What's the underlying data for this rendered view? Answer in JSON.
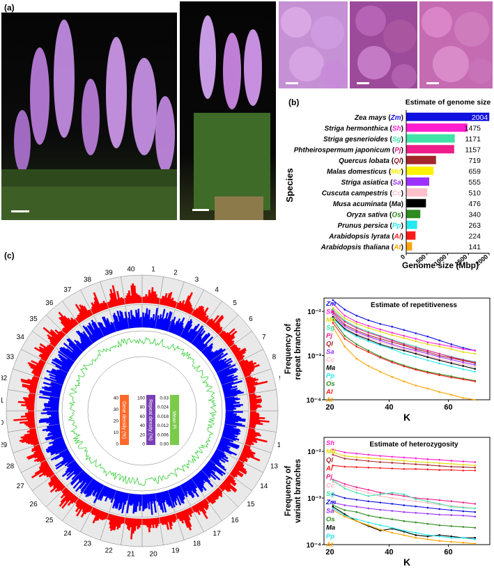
{
  "panels": {
    "a": "(a)",
    "b": "(b)",
    "c": "(c)"
  },
  "genome_size_chart": {
    "type": "bar",
    "title": "Estimate of genome size",
    "xlabel": "Genome size (Mbp)",
    "ylabel": "Species",
    "xlim": [
      0,
      2000
    ],
    "xticks": [
      0,
      500,
      1000,
      1500,
      2000
    ],
    "categories": [
      {
        "name": "Zea mays",
        "abbr": "Zm",
        "value": 2004,
        "color": "#1010e0"
      },
      {
        "name": "Striga hermonthica",
        "abbr": "Sh",
        "value": 1475,
        "color": "#ff1ecf"
      },
      {
        "name": "Striga gesnerioides",
        "abbr": "Sg",
        "value": 1171,
        "color": "#3fe3a8"
      },
      {
        "name": "Phtheirospermum japonicum",
        "abbr": "Pj",
        "value": 1157,
        "color": "#ee1d8a"
      },
      {
        "name": "Quercus lobata",
        "abbr": "Ql",
        "value": 719,
        "color": "#a3262a"
      },
      {
        "name": "Malas domesticus",
        "abbr": "Md",
        "value": 659,
        "color": "#fff200"
      },
      {
        "name": "Striga asiatica",
        "abbr": "Sa",
        "value": 555,
        "color": "#9b30ff"
      },
      {
        "name": "Cuscuta campestris",
        "abbr": "Cc",
        "value": 510,
        "color": "#ffc0cb"
      },
      {
        "name": "Musa acuminata",
        "abbr": "Ma",
        "value": 476,
        "color": "#000000"
      },
      {
        "name": "Oryza sativa",
        "abbr": "Os",
        "value": 340,
        "color": "#2e8b1e"
      },
      {
        "name": "Prunus persica",
        "abbr": "Pp",
        "value": 263,
        "color": "#25e8ef"
      },
      {
        "name": "Arabidopsis lyrata",
        "abbr": "Al",
        "value": 224,
        "color": "#ff1a1a"
      },
      {
        "name": "Arabidopsis thaliana",
        "abbr": "At",
        "value": 141,
        "color": "#ffa500"
      }
    ]
  },
  "repetitiveness_chart": {
    "type": "line",
    "title": "Estimate of repetitiveness",
    "xlabel": "K",
    "ylabel_lines": [
      "Frequency of",
      "repeat branches"
    ],
    "log_y": true,
    "ylim": [
      0.0001,
      0.02
    ],
    "xlim": [
      18,
      74
    ],
    "xticks": [
      20,
      40,
      60
    ],
    "yticks": [
      {
        "v": 0.01,
        "label": "10⁻²"
      },
      {
        "v": 0.001,
        "label": "10⁻³"
      },
      {
        "v": 0.0001,
        "label": "10⁻⁴"
      }
    ],
    "legend": [
      {
        "abbr": "Zm",
        "color": "#1010e0"
      },
      {
        "abbr": "Sh",
        "color": "#ff1ecf"
      },
      {
        "abbr": "Md",
        "color": "#e6d800"
      },
      {
        "abbr": "Sg",
        "color": "#3fe3a8"
      },
      {
        "abbr": "Pj",
        "color": "#ee1d8a"
      },
      {
        "abbr": "Ql",
        "color": "#a3262a"
      },
      {
        "abbr": "Sa",
        "color": "#9b30ff"
      },
      {
        "abbr": "Cc",
        "color": "#ffb6c1"
      },
      {
        "abbr": "Ma",
        "color": "#000000"
      },
      {
        "abbr": "Pp",
        "color": "#25e8ef"
      },
      {
        "abbr": "Os",
        "color": "#2e8b1e"
      },
      {
        "abbr": "Al",
        "color": "#ff1a1a"
      },
      {
        "abbr": "At",
        "color": "#ffa500"
      }
    ],
    "x": [
      21,
      25,
      29,
      33,
      37,
      41,
      45,
      49,
      53,
      57,
      61,
      65,
      69
    ],
    "series": [
      {
        "name": "Zm",
        "color": "#1010e0",
        "values": [
          0.018,
          0.011,
          0.008,
          0.0063,
          0.0052,
          0.0045,
          0.0038,
          0.0032,
          0.0027,
          0.0022,
          0.0018,
          0.0015,
          0.0013
        ]
      },
      {
        "name": "Sh",
        "color": "#ff1ecf",
        "values": [
          0.015,
          0.008,
          0.0058,
          0.0047,
          0.0039,
          0.0033,
          0.0028,
          0.0024,
          0.002,
          0.0018,
          0.0016,
          0.0014,
          0.0013
        ]
      },
      {
        "name": "Md",
        "color": "#e6d800",
        "values": [
          0.012,
          0.007,
          0.0052,
          0.0042,
          0.0035,
          0.0029,
          0.0025,
          0.0021,
          0.0018,
          0.0016,
          0.0014,
          0.0012,
          0.0011
        ]
      },
      {
        "name": "Sg",
        "color": "#3fe3a8",
        "values": [
          0.011,
          0.0062,
          0.0044,
          0.0035,
          0.0028,
          0.0023,
          0.0019,
          0.0016,
          0.0013,
          0.0011,
          0.00095,
          0.00082,
          0.00072
        ]
      },
      {
        "name": "Pj",
        "color": "#ee1d8a",
        "values": [
          0.01,
          0.0058,
          0.0042,
          0.0033,
          0.0027,
          0.0022,
          0.0018,
          0.0015,
          0.0013,
          0.0011,
          0.00092,
          0.0008,
          0.0007
        ]
      },
      {
        "name": "Ql",
        "color": "#a3262a",
        "values": [
          0.0095,
          0.005,
          0.0037,
          0.0029,
          0.0024,
          0.002,
          0.0017,
          0.0014,
          0.0012,
          0.001,
          0.00088,
          0.00077,
          0.00068
        ]
      },
      {
        "name": "Sa",
        "color": "#9b30ff",
        "values": [
          0.0085,
          0.0046,
          0.0034,
          0.0027,
          0.0022,
          0.0018,
          0.0015,
          0.0013,
          0.0011,
          0.00093,
          0.00081,
          0.0007,
          0.00062
        ]
      },
      {
        "name": "Cc",
        "color": "#ffb6c1",
        "values": [
          0.008,
          0.0043,
          0.0031,
          0.0025,
          0.002,
          0.0017,
          0.0014,
          0.0012,
          0.00098,
          0.00084,
          0.00072,
          0.00063,
          0.00056
        ]
      },
      {
        "name": "Ma",
        "color": "#000000",
        "values": [
          0.0075,
          0.004,
          0.0029,
          0.0023,
          0.0018,
          0.0015,
          0.0013,
          0.0011,
          0.00092,
          0.00078,
          0.00067,
          0.00058,
          0.0005
        ]
      },
      {
        "name": "Pp",
        "color": "#25e8ef",
        "values": [
          0.007,
          0.0038,
          0.0027,
          0.0021,
          0.0017,
          0.0014,
          0.0011,
          0.00093,
          0.00078,
          0.00066,
          0.00057,
          0.00049,
          0.00043
        ]
      },
      {
        "name": "Os",
        "color": "#2e8b1e",
        "values": [
          0.0065,
          0.0028,
          0.0018,
          0.0013,
          0.00095,
          0.00074,
          0.0006,
          0.0005,
          0.00043,
          0.00038,
          0.00034,
          0.0003,
          0.00027
        ]
      },
      {
        "name": "Al",
        "color": "#ff1a1a",
        "values": [
          0.0055,
          0.0024,
          0.0016,
          0.0012,
          0.0009,
          0.0007,
          0.00057,
          0.00048,
          0.00041,
          0.00036,
          0.00032,
          0.00029,
          0.00026
        ]
      },
      {
        "name": "At",
        "color": "#ffa500",
        "values": [
          0.0045,
          0.0016,
          0.00085,
          0.00058,
          0.00043,
          0.00033,
          0.00026,
          0.00021,
          0.00018,
          0.00015,
          0.00013,
          0.00011,
          0.0001
        ]
      }
    ]
  },
  "heterozygosity_chart": {
    "type": "line",
    "title": "Estimate of heterozygosity",
    "xlabel": "K",
    "ylabel_lines": [
      "Frequency of",
      "variant branches"
    ],
    "log_y": true,
    "ylim": [
      0.0001,
      0.02
    ],
    "xlim": [
      18,
      74
    ],
    "xticks": [
      20,
      40,
      60
    ],
    "yticks": [
      {
        "v": 0.01,
        "label": "10⁻²"
      },
      {
        "v": 0.001,
        "label": "10⁻³"
      },
      {
        "v": 0.0001,
        "label": "10⁻⁴"
      }
    ],
    "legend": [
      {
        "abbr": "Sh",
        "color": "#ff1ecf"
      },
      {
        "abbr": "Md",
        "color": "#e6d800"
      },
      {
        "abbr": "Ql",
        "color": "#a3262a"
      },
      {
        "abbr": "Al",
        "color": "#ff1a1a"
      },
      {
        "abbr": "Pj",
        "color": "#ee1d8a"
      },
      {
        "abbr": "Cc",
        "color": "#ffb6c1"
      },
      {
        "abbr": "Sg",
        "color": "#3fe3a8"
      },
      {
        "abbr": "Zm",
        "color": "#1010e0"
      },
      {
        "abbr": "Sa",
        "color": "#9b30ff"
      },
      {
        "abbr": "Os",
        "color": "#2e8b1e"
      },
      {
        "abbr": "Ma",
        "color": "#000000"
      },
      {
        "abbr": "Pp",
        "color": "#25e8ef"
      },
      {
        "abbr": "At",
        "color": "#ffa500"
      }
    ],
    "x": [
      21,
      25,
      29,
      33,
      37,
      41,
      45,
      49,
      53,
      57,
      61,
      65,
      69
    ],
    "series": [
      {
        "name": "Sh",
        "color": "#ff1ecf",
        "values": [
          0.011,
          0.0095,
          0.009,
          0.0085,
          0.008,
          0.0077,
          0.0074,
          0.0071,
          0.0068,
          0.0066,
          0.0063,
          0.0061,
          0.0059
        ]
      },
      {
        "name": "Md",
        "color": "#e6d800",
        "values": [
          0.0095,
          0.008,
          0.0075,
          0.0072,
          0.0069,
          0.0066,
          0.0063,
          0.006,
          0.0058,
          0.0056,
          0.0054,
          0.0052,
          0.005
        ]
      },
      {
        "name": "Ql",
        "color": "#a3262a",
        "values": [
          0.0085,
          0.007,
          0.0066,
          0.0062,
          0.0059,
          0.0057,
          0.0055,
          0.0053,
          0.0051,
          0.0049,
          0.0047,
          0.0046,
          0.0045
        ]
      },
      {
        "name": "Al",
        "color": "#ff1a1a",
        "values": [
          0.005,
          0.0047,
          0.0046,
          0.0045,
          0.0044,
          0.0043,
          0.0042,
          0.0042,
          0.0041,
          0.004,
          0.004,
          0.0039,
          0.0039
        ]
      },
      {
        "name": "Pj",
        "color": "#ee1d8a",
        "values": [
          0.0025,
          0.002,
          0.0017,
          0.0015,
          0.0013,
          0.0012,
          0.0011,
          0.001,
          0.00095,
          0.0009,
          0.00085,
          0.0008,
          0.00075
        ]
      },
      {
        "name": "Cc",
        "color": "#ffb6c1",
        "values": [
          0.0022,
          0.0018,
          0.0015,
          0.0013,
          0.0011,
          0.001,
          0.00092,
          0.00085,
          0.00078,
          0.00072,
          0.00068,
          0.00064,
          0.0006
        ]
      },
      {
        "name": "Sg",
        "color": "#3fe3a8",
        "values": [
          0.0024,
          0.0016,
          0.0013,
          0.0011,
          0.0012,
          0.0013,
          0.0012,
          0.00095,
          0.00085,
          0.00075,
          0.00065,
          0.00062,
          0.0006
        ]
      },
      {
        "name": "Zm",
        "color": "#1010e0",
        "values": [
          0.0012,
          0.001,
          0.00092,
          0.00085,
          0.0008,
          0.00075,
          0.0007,
          0.00066,
          0.00062,
          0.00058,
          0.00055,
          0.00052,
          0.0005
        ]
      },
      {
        "name": "Sa",
        "color": "#9b30ff",
        "values": [
          0.0008,
          0.0007,
          0.00065,
          0.0006,
          0.00056,
          0.00053,
          0.0005,
          0.00048,
          0.00046,
          0.00044,
          0.00043,
          0.00042,
          0.0004
        ]
      },
      {
        "name": "Os",
        "color": "#2e8b1e",
        "values": [
          0.0007,
          0.00055,
          0.0005,
          0.00042,
          0.00038,
          0.00035,
          0.00032,
          0.0003,
          0.00028,
          0.00026,
          0.00025,
          0.00024,
          0.00023
        ]
      },
      {
        "name": "Ma",
        "color": "#000000",
        "values": [
          0.00065,
          0.00045,
          0.00032,
          0.00025,
          0.0002,
          0.00022,
          0.00019,
          0.00016,
          0.00015,
          0.00016,
          0.00015,
          0.00014,
          0.00014
        ]
      },
      {
        "name": "Pp",
        "color": "#25e8ef",
        "values": [
          0.0006,
          0.00042,
          0.00035,
          0.0003,
          0.00026,
          0.00023,
          0.0002,
          0.00018,
          0.00016,
          0.00015,
          0.00014,
          0.00014,
          0.00013
        ]
      },
      {
        "name": "At",
        "color": "#ffa500",
        "values": [
          0.00055,
          0.0004,
          0.00032,
          0.00026,
          0.00021,
          0.00018,
          0.00016,
          0.00014,
          0.00013,
          0.00012,
          0.000115,
          0.00011,
          0.000105
        ]
      }
    ]
  },
  "circos": {
    "chromosomes": [
      "1",
      "2",
      "3",
      "4",
      "5",
      "6",
      "7",
      "8",
      "9",
      "10",
      "11",
      "12",
      "13",
      "14",
      "15",
      "16",
      "17",
      "18",
      "19",
      "20",
      "21",
      "22",
      "23",
      "24",
      "25",
      "26",
      "27",
      "28",
      "29",
      "30",
      "31",
      "32",
      "33",
      "34",
      "35",
      "36",
      "37",
      "38",
      "39",
      "40"
    ],
    "track_colors": {
      "outer": "#ff0000",
      "middle": "#0000ff",
      "inner": "#33cc33",
      "ring_bg": "#e9e9e9"
    },
    "legend": [
      {
        "label": "Gene density (%)",
        "color": "#ff6a2a",
        "ticks": [
          "40",
          "30",
          "20",
          "10",
          "0"
        ]
      },
      {
        "label": "Repeat density (%)",
        "color": "#7b3fb6",
        "ticks": [
          "100",
          "80",
          "60",
          "40",
          "20",
          "0"
        ]
      },
      {
        "label": "Mean Pi",
        "color": "#7acb4a",
        "ticks": [
          "0.03",
          "0.024",
          "0.018",
          "0.012",
          "0.006",
          "0.00"
        ]
      }
    ]
  }
}
